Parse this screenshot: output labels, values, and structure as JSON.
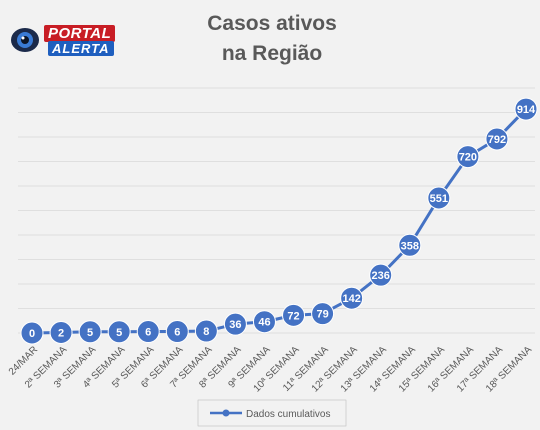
{
  "logo": {
    "line1": "PORTAL",
    "line2": "ALERTA"
  },
  "colors": {
    "line": "#4472c4",
    "marker": "#4472c4",
    "marker_text": "#ffffff",
    "grid": "#d9d9d9",
    "plot_bg": "#f2f2f2",
    "title": "#595959"
  },
  "chart_data": {
    "type": "line",
    "title_lines": [
      "Casos ativos",
      "na Região"
    ],
    "xlabel": "",
    "ylabel": "",
    "categories": [
      "24/MAR",
      "2ª SEMANA",
      "3ª SEMANA",
      "4ª SEMANA",
      "5ª SEMANA",
      "6ª SEMANA",
      "7ª SEMANA",
      "8ª SEMANA",
      "9ª SEMANA",
      "10ª SEMANA",
      "11ª SEMANA",
      "12ª SEMANA",
      "13ª SEMANA",
      "14ª SEMANA",
      "15ª SEMANA",
      "16ª SEMANA",
      "17ª SEMANA",
      "18ª SEMANA"
    ],
    "series": [
      {
        "name": "Dados cumulativos",
        "values": [
          0,
          2,
          5,
          5,
          6,
          6,
          8,
          36,
          46,
          72,
          79,
          142,
          236,
          358,
          551,
          720,
          792,
          914
        ]
      }
    ],
    "ylim": [
      0,
      1000
    ],
    "grid": true,
    "legend_position": "bottom",
    "data_labels": true
  }
}
